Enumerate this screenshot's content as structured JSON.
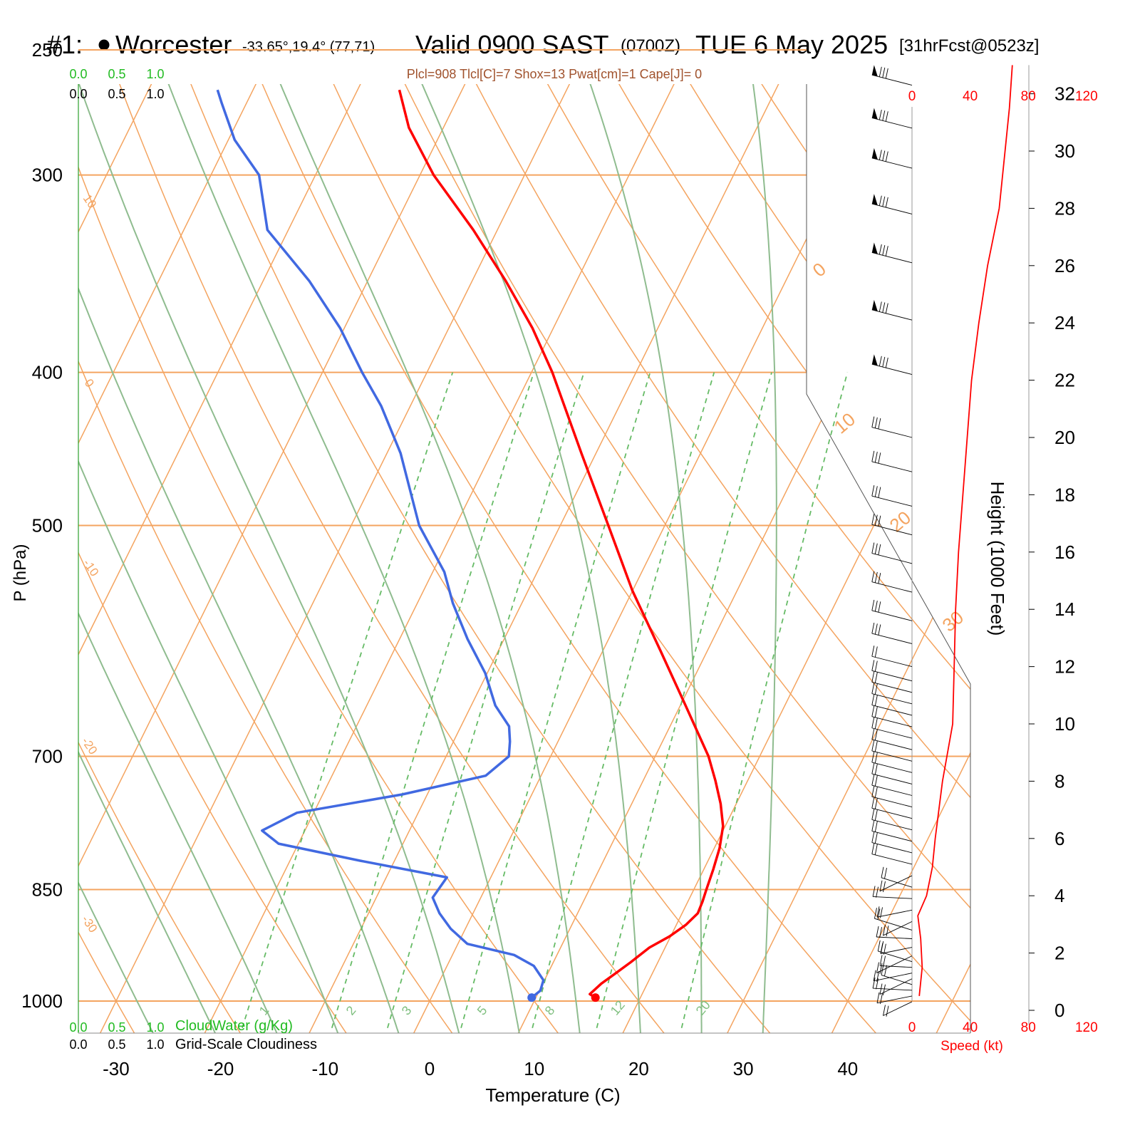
{
  "header": {
    "station_prefix": "#1:",
    "station_name": "Worcester",
    "coords": "-33.65°,19.4° (77,71)",
    "valid_label": "Valid 0900 SAST",
    "utc": "(0700Z)",
    "date": "TUE 6 May 2025",
    "forecast": "[31hrFcst@0523z]"
  },
  "indices": "Plcl=908 Tlcl[C]=7 Shox=13 Pwat[cm]=1 Cape[J]= 0",
  "colors": {
    "temperature": "#ff0000",
    "dewpoint": "#4169e1",
    "isotherm": "#f4a460",
    "dry_adiabat": "#f4a460",
    "moist_adiabat": "#8fbc8f",
    "mixing_ratio": "#66bb66",
    "cloud_scale": "#22bb22",
    "speed": "#ff0000",
    "indices": "#a0522d"
  },
  "chart_data": {
    "type": "skew-t",
    "xlabel": "Temperature (C)",
    "ylabel": "P (hPa)",
    "x_ticks": [
      -30,
      -20,
      -10,
      0,
      10,
      20,
      30,
      40
    ],
    "x_tick_labels": [
      "-30",
      "-20",
      "-10",
      "0",
      "10",
      "20",
      "30",
      "40"
    ],
    "p_ticks": [
      250,
      300,
      400,
      500,
      700,
      850,
      1000
    ],
    "p_tick_labels": [
      "250",
      "300",
      "400",
      "500",
      "700",
      "850",
      "1000"
    ],
    "height_label": "Height (1000 Feet)",
    "height_ticks": [
      0,
      2,
      4,
      6,
      8,
      10,
      12,
      14,
      16,
      18,
      20,
      22,
      24,
      26,
      28,
      30,
      32
    ],
    "height_tick_labels": [
      "0",
      "2",
      "4",
      "6",
      "8",
      "10",
      "12",
      "14",
      "16",
      "18",
      "20",
      "22",
      "24",
      "26",
      "28",
      "30",
      "32"
    ],
    "speed_label": "Speed (kt)",
    "speed_ticks": [
      "0",
      "40",
      "80",
      "120"
    ],
    "cloud_scale_labels": [
      "0.0",
      "0.5",
      "1.0"
    ],
    "cloudwater_label": "CloudWater (g/Kg)",
    "cloudiness_label": "Grid-Scale Cloudiness",
    "isotherm_labels": [
      "10",
      "0",
      "-10",
      "-20",
      "-30"
    ],
    "dry_adiabat_labels": [
      "0",
      "10",
      "20",
      "30"
    ],
    "mixing_ratio_labels": [
      "1",
      "2",
      "3",
      "5",
      "8",
      "12",
      "20"
    ],
    "mixing_ratio_values": [
      1,
      2,
      3,
      5,
      8,
      12,
      20
    ],
    "temperature": {
      "p": [
        995,
        990,
        975,
        960,
        945,
        925,
        910,
        895,
        880,
        865,
        850,
        825,
        800,
        775,
        750,
        725,
        700,
        650,
        600,
        550,
        500,
        450,
        400,
        375,
        350,
        325,
        300,
        280,
        265
      ],
      "t": [
        15.7,
        15.0,
        15.6,
        16.5,
        17.4,
        18.5,
        19.9,
        20.9,
        21.5,
        21.4,
        21.2,
        20.9,
        20.5,
        19.8,
        18.5,
        16.9,
        15.1,
        10.5,
        5.5,
        0.0,
        -5.4,
        -11.4,
        -18.0,
        -22.0,
        -26.8,
        -32.3,
        -38.7,
        -43.3,
        -46.0
      ]
    },
    "dewpoint": {
      "p": [
        995,
        985,
        970,
        950,
        935,
        920,
        900,
        880,
        860,
        835,
        815,
        795,
        780,
        760,
        740,
        720,
        700,
        685,
        670,
        650,
        620,
        590,
        560,
        535,
        500,
        450,
        420,
        400,
        375,
        350,
        325,
        300,
        285,
        270,
        265
      ],
      "td": [
        9.6,
        10.1,
        9.9,
        8.3,
        5.9,
        0.9,
        -1.4,
        -3.2,
        -4.6,
        -4.2,
        -13.3,
        -21.9,
        -24.1,
        -21.6,
        -12.4,
        -5.3,
        -4.0,
        -4.6,
        -5.4,
        -7.7,
        -10.2,
        -13.5,
        -16.6,
        -18.9,
        -23.5,
        -28.7,
        -32.8,
        -36.2,
        -40.4,
        -45.6,
        -52.0,
        -55.4,
        -59.4,
        -62.4,
        -63.4
      ]
    },
    "height_profile_kft": {
      "h": [
        0.5,
        1.5,
        2.5,
        3.3,
        4.0,
        5.0,
        6.0,
        8.0,
        10.0,
        12.0,
        14.0,
        16.0,
        18.0,
        20.0,
        22.0,
        24.0,
        26.0,
        28.0,
        30.0,
        31.5,
        33.0
      ],
      "speed_kt": [
        5,
        7,
        6,
        4,
        10,
        14,
        16,
        21,
        28,
        29,
        30,
        32,
        35,
        38,
        41,
        46,
        52,
        60,
        64,
        67,
        69
      ]
    },
    "wind_barb_heights_kft": [
      0.3,
      0.5,
      0.7,
      0.9,
      1.1,
      1.3,
      1.5,
      1.7,
      1.9,
      2.2,
      2.5,
      2.8,
      3.1,
      3.5,
      3.9,
      4.3,
      4.7,
      5.1,
      5.5,
      5.9,
      6.3,
      6.7,
      7.1,
      7.5,
      7.9,
      8.3,
      8.7,
      9.1,
      9.5,
      9.9,
      10.3,
      10.7,
      11.1,
      11.5,
      12.0,
      12.8,
      13.6,
      14.6,
      15.6,
      16.6,
      17.6,
      18.8,
      20.0,
      22.2,
      24.1,
      26.1,
      27.8,
      29.4,
      30.8,
      32.3
    ]
  }
}
